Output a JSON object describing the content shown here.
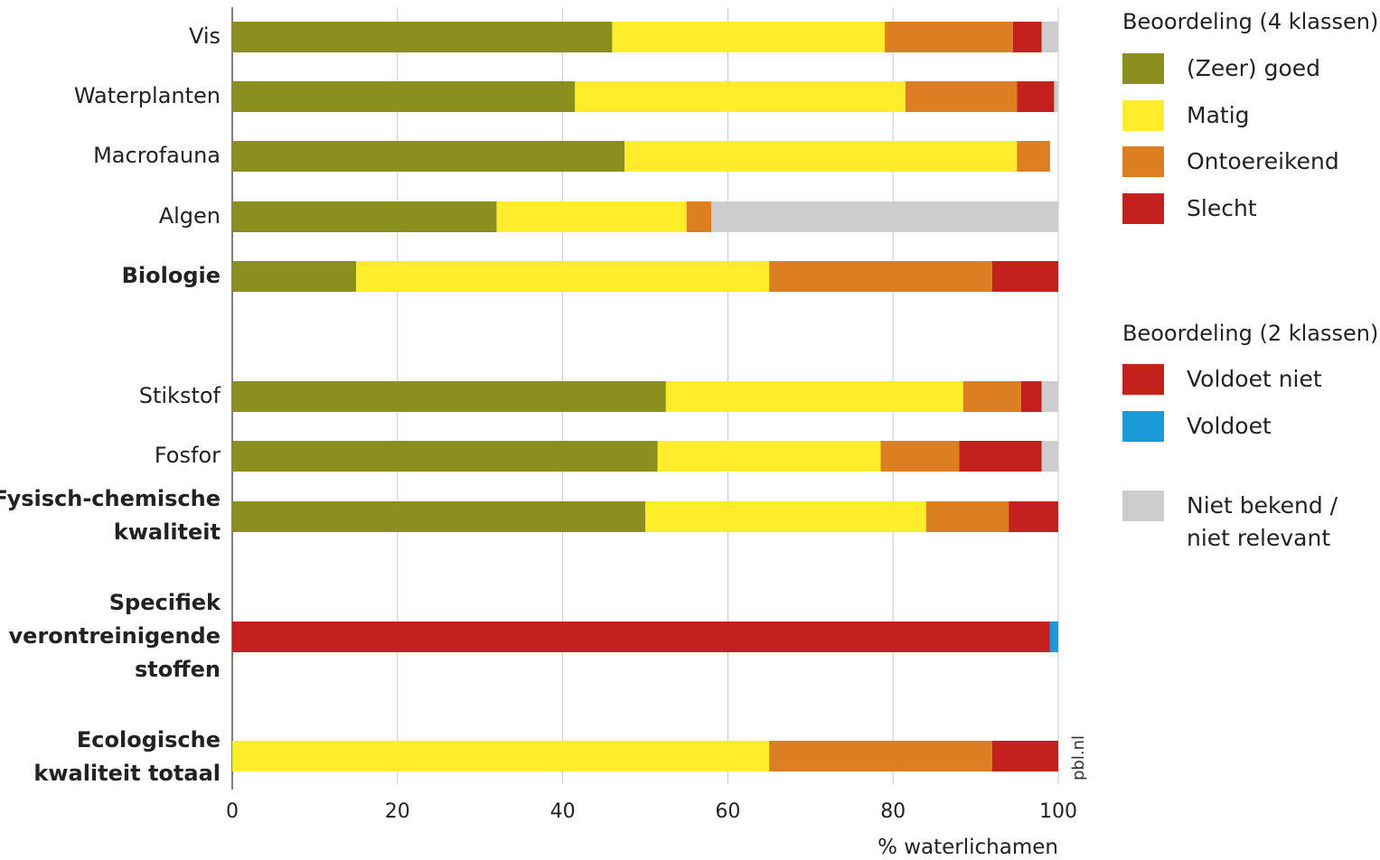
{
  "chart_data": {
    "type": "bar",
    "orientation": "horizontal",
    "stacked": true,
    "xlabel": "% waterlichamen",
    "xlim": [
      0,
      100
    ],
    "xticks": [
      "0",
      "20",
      "40",
      "60",
      "80",
      "100"
    ],
    "grid": true,
    "source_label": "pbl.nl",
    "colors": {
      "goed": "#8a8f1e",
      "matig": "#ffec2b",
      "ontoereikend": "#dc7f22",
      "slecht": "#c4201d",
      "voldoet_niet": "#c4201d",
      "voldoet": "#1a9ad6",
      "onbekend": "#cccccc"
    },
    "categories": [
      {
        "label": "Vis",
        "bold": false,
        "segments": [
          [
            "goed",
            46
          ],
          [
            "matig",
            33
          ],
          [
            "ontoereikend",
            15.5
          ],
          [
            "slecht",
            3.5
          ],
          [
            "onbekend",
            2
          ]
        ]
      },
      {
        "label": "Waterplanten",
        "bold": false,
        "segments": [
          [
            "goed",
            41.5
          ],
          [
            "matig",
            40
          ],
          [
            "ontoereikend",
            13.5
          ],
          [
            "slecht",
            4.5
          ],
          [
            "onbekend",
            0.5
          ]
        ]
      },
      {
        "label": "Macrofauna",
        "bold": false,
        "segments": [
          [
            "goed",
            47.5
          ],
          [
            "matig",
            47.5
          ],
          [
            "ontoereikend",
            4
          ]
        ]
      },
      {
        "label": "Algen",
        "bold": false,
        "segments": [
          [
            "goed",
            32
          ],
          [
            "matig",
            23
          ],
          [
            "ontoereikend",
            3
          ],
          [
            "onbekend",
            42
          ]
        ]
      },
      {
        "label": "Biologie",
        "bold": true,
        "segments": [
          [
            "goed",
            15
          ],
          [
            "matig",
            50
          ],
          [
            "ontoereikend",
            27
          ],
          [
            "slecht",
            8
          ]
        ]
      },
      {
        "label": "Stikstof",
        "bold": false,
        "segments": [
          [
            "goed",
            52.5
          ],
          [
            "matig",
            36
          ],
          [
            "ontoereikend",
            7
          ],
          [
            "slecht",
            2.5
          ],
          [
            "onbekend",
            2
          ]
        ]
      },
      {
        "label": "Fosfor",
        "bold": false,
        "segments": [
          [
            "goed",
            51.5
          ],
          [
            "matig",
            27
          ],
          [
            "ontoereikend",
            9.5
          ],
          [
            "slecht",
            10
          ],
          [
            "onbekend",
            2
          ]
        ]
      },
      {
        "label": "Fysisch-chemische kwaliteit",
        "bold": true,
        "segments": [
          [
            "goed",
            50
          ],
          [
            "matig",
            34
          ],
          [
            "ontoereikend",
            10
          ],
          [
            "slecht",
            6
          ]
        ]
      },
      {
        "label": "Specifiek verontreinigende stoffen",
        "bold": true,
        "segments": [
          [
            "voldoet_niet",
            99
          ],
          [
            "voldoet",
            1
          ]
        ]
      },
      {
        "label": "Ecologische kwaliteit totaal",
        "bold": true,
        "segments": [
          [
            "matig",
            65
          ],
          [
            "ontoereikend",
            27
          ],
          [
            "slecht",
            8
          ]
        ]
      }
    ]
  },
  "legend": {
    "title_4": "Beoordeling (4 klassen)",
    "items_4": [
      {
        "key": "goed",
        "label": "(Zeer) goed"
      },
      {
        "key": "matig",
        "label": "Matig"
      },
      {
        "key": "ontoereikend",
        "label": "Ontoereikend"
      },
      {
        "key": "slecht",
        "label": "Slecht"
      }
    ],
    "title_2": "Beoordeling (2 klassen)",
    "items_2": [
      {
        "key": "voldoet_niet",
        "label": "Voldoet niet"
      },
      {
        "key": "voldoet",
        "label": "Voldoet"
      }
    ],
    "unknown_line1": "Niet bekend /",
    "unknown_line2": "niet relevant"
  }
}
